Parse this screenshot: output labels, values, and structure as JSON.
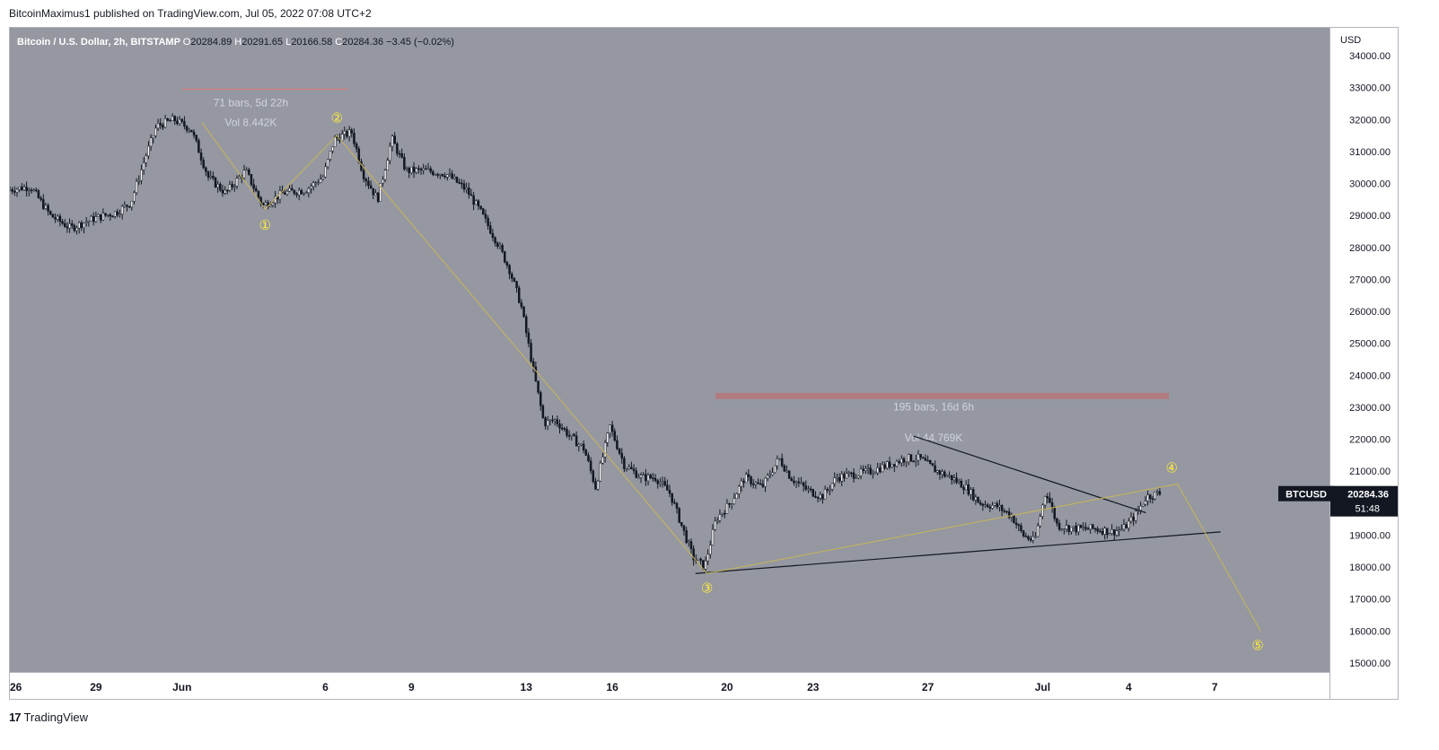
{
  "header": {
    "publisher_line": "BitcoinMaximus1 published on TradingView.com, Jul 05, 2022 07:08 UTC+2"
  },
  "footer": {
    "brand": "TradingView",
    "logo_icon": "tradingview-logo-icon"
  },
  "colors": {
    "plot_bg": "#9598a1",
    "candle": "#131722",
    "wave_line": "#c9b458",
    "wave_label": "#ffeb3b",
    "resistance": "#b27b7f",
    "measure_line": "#e57373",
    "measure_text": "#d1d4dc",
    "price_tag_bg": "#131722"
  },
  "chart_data": {
    "type": "candlestick",
    "title": "Bitcoin / U.S. Dollar, 2h, BITSTAMP",
    "ohlc": {
      "O": "20284.89",
      "H": "20291.65",
      "L": "20166.58",
      "C": "20284.36",
      "change": "−3.45 (−0.02%)"
    },
    "ylabel": "USD",
    "ylim": [
      15000,
      34000
    ],
    "y_ticks": [
      "34000.00",
      "33000.00",
      "32000.00",
      "31000.00",
      "30000.00",
      "29000.00",
      "28000.00",
      "27000.00",
      "26000.00",
      "25000.00",
      "24000.00",
      "23000.00",
      "22000.00",
      "21000.00",
      "20000.00",
      "19000.00",
      "18000.00",
      "17000.00",
      "16000.00",
      "15000.00"
    ],
    "x_day_range": [
      0,
      46
    ],
    "x_ticks": [
      {
        "label": "26",
        "day": 0
      },
      {
        "label": "29",
        "day": 3
      },
      {
        "label": "Jun",
        "day": 6
      },
      {
        "label": "6",
        "day": 11
      },
      {
        "label": "9",
        "day": 14
      },
      {
        "label": "13",
        "day": 18
      },
      {
        "label": "16",
        "day": 21
      },
      {
        "label": "20",
        "day": 25
      },
      {
        "label": "23",
        "day": 28
      },
      {
        "label": "27",
        "day": 32
      },
      {
        "label": "Jul",
        "day": 36
      },
      {
        "label": "4",
        "day": 39
      },
      {
        "label": "7",
        "day": 42
      }
    ],
    "price_path": [
      [
        0,
        29800
      ],
      [
        0.8,
        29900
      ],
      [
        1.5,
        29000
      ],
      [
        2.2,
        28600
      ],
      [
        3,
        28900
      ],
      [
        3.8,
        29100
      ],
      [
        4.3,
        29400
      ],
      [
        4.8,
        30800
      ],
      [
        5.2,
        31800
      ],
      [
        5.8,
        32000
      ],
      [
        6.4,
        31700
      ],
      [
        7,
        30200
      ],
      [
        7.6,
        29700
      ],
      [
        8.3,
        30400
      ],
      [
        8.9,
        29300
      ],
      [
        9.6,
        29700
      ],
      [
        10.4,
        29800
      ],
      [
        11,
        30200
      ],
      [
        11.4,
        31400
      ],
      [
        12,
        31600
      ],
      [
        12.4,
        30300
      ],
      [
        12.9,
        29500
      ],
      [
        13.4,
        31400
      ],
      [
        13.9,
        30400
      ],
      [
        14.6,
        30400
      ],
      [
        15.3,
        30300
      ],
      [
        16,
        29800
      ],
      [
        16.5,
        29100
      ],
      [
        17.1,
        28100
      ],
      [
        17.5,
        27300
      ],
      [
        17.9,
        26200
      ],
      [
        18.3,
        24300
      ],
      [
        18.7,
        22500
      ],
      [
        19.1,
        22600
      ],
      [
        19.6,
        22100
      ],
      [
        20.1,
        21700
      ],
      [
        20.5,
        20500
      ],
      [
        21,
        22400
      ],
      [
        21.5,
        21200
      ],
      [
        22.1,
        20800
      ],
      [
        22.6,
        20800
      ],
      [
        23.1,
        20300
      ],
      [
        23.5,
        19300
      ],
      [
        23.9,
        18300
      ],
      [
        24.3,
        18000
      ],
      [
        24.7,
        19500
      ],
      [
        25.2,
        20000
      ],
      [
        25.7,
        20800
      ],
      [
        26.3,
        20500
      ],
      [
        26.9,
        21400
      ],
      [
        27.3,
        20800
      ],
      [
        27.9,
        20400
      ],
      [
        28.4,
        20200
      ],
      [
        28.9,
        20800
      ],
      [
        29.5,
        20900
      ],
      [
        30.1,
        21000
      ],
      [
        30.7,
        21200
      ],
      [
        31.3,
        21400
      ],
      [
        31.8,
        21400
      ],
      [
        32.4,
        21000
      ],
      [
        32.9,
        20800
      ],
      [
        33.4,
        20500
      ],
      [
        33.9,
        20000
      ],
      [
        34.5,
        19900
      ],
      [
        35,
        19600
      ],
      [
        35.4,
        19000
      ],
      [
        35.8,
        18800
      ],
      [
        36.2,
        20400
      ],
      [
        36.6,
        19300
      ],
      [
        37.2,
        19200
      ],
      [
        37.9,
        19200
      ],
      [
        38.5,
        19100
      ],
      [
        38.9,
        19200
      ],
      [
        39.3,
        19600
      ],
      [
        39.7,
        20200
      ],
      [
        40.1,
        20300
      ]
    ],
    "elliott_wave": {
      "points": [
        [
          6.7,
          31900
        ],
        [
          8.9,
          29200
        ],
        [
          11.4,
          31500
        ],
        [
          24.3,
          17800
        ],
        [
          40.7,
          20600
        ],
        [
          43.6,
          16000
        ]
      ],
      "labels": [
        {
          "text": "①",
          "day": 8.9,
          "price": 28700
        },
        {
          "text": "②",
          "day": 11.4,
          "price": 32050
        },
        {
          "text": "③",
          "day": 24.3,
          "price": 17350
        },
        {
          "text": "④",
          "day": 40.5,
          "price": 21100
        },
        {
          "text": "⑤",
          "day": 43.5,
          "price": 15550
        }
      ]
    },
    "trendlines": [
      {
        "name": "support",
        "from": [
          23.9,
          17800
        ],
        "to": [
          42.2,
          19100
        ]
      },
      {
        "name": "resistance-diagonal",
        "from": [
          31.5,
          22100
        ],
        "to": [
          39.6,
          19700
        ]
      }
    ],
    "resistance_zone": {
      "from_day": 24.6,
      "to_day": 40.4,
      "low": 23250,
      "high": 23450
    },
    "measures": [
      {
        "bars": "71 bars, 5d 22h",
        "vol": "Vol 8.442K",
        "line_price": 32950,
        "from_day": 6.0,
        "to_day": 11.8,
        "text_day": 8.4,
        "bars_price": 32420,
        "vol_price": 31800
      },
      {
        "bars": "195 bars, 16d 6h",
        "vol": "Vol 44.769K",
        "text_day": 32.2,
        "bars_price": 22900,
        "vol_price": 21930
      }
    ],
    "last_price": {
      "symbol": "BTCUSD",
      "value": "20284.36",
      "countdown": "51:48",
      "price": 20284.36
    }
  }
}
